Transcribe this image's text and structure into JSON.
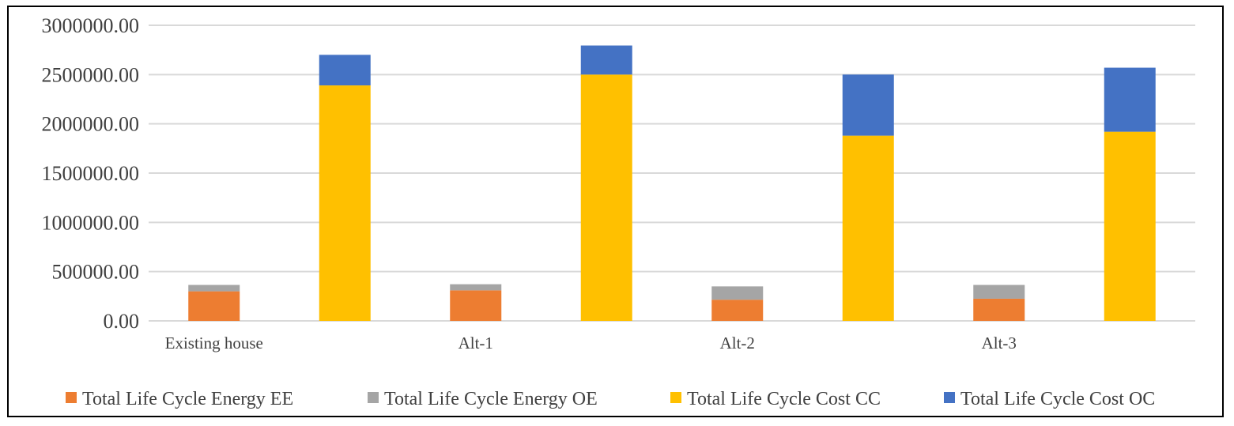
{
  "chart_data": {
    "type": "bar",
    "stacked": true,
    "categories": [
      "Existing house",
      "Alt-1",
      "Alt-2",
      "Alt-3"
    ],
    "groups": [
      {
        "members": [
          "Total Life Cycle Energy EE",
          "Total Life Cycle Energy OE"
        ],
        "offset": "left"
      },
      {
        "members": [
          "Total Life Cycle Cost CC",
          "Total Life Cycle Cost OC"
        ],
        "offset": "right"
      }
    ],
    "series": [
      {
        "name": "Total Life Cycle Energy EE",
        "color": "#ED7D31",
        "values": [
          300000,
          310000,
          215000,
          225000
        ]
      },
      {
        "name": "Total Life Cycle Energy OE",
        "color": "#A5A5A5",
        "values": [
          65000,
          62000,
          135000,
          140000
        ]
      },
      {
        "name": "Total Life Cycle Cost CC",
        "color": "#FFC000",
        "values": [
          2390000,
          2500000,
          1880000,
          1920000
        ]
      },
      {
        "name": "Total Life Cycle Cost OC",
        "color": "#4472C4",
        "values": [
          310000,
          295000,
          620000,
          650000
        ]
      }
    ],
    "ylim": [
      0,
      3000000
    ],
    "yticks": [
      "0.00",
      "500000.00",
      "1000000.00",
      "1500000.00",
      "2000000.00",
      "2500000.00",
      "3000000.00"
    ],
    "ytick_values": [
      0,
      500000,
      1000000,
      1500000,
      2000000,
      2500000,
      3000000
    ],
    "grid": true,
    "legend_position": "bottom",
    "title": "",
    "xlabel": "",
    "ylabel": ""
  }
}
